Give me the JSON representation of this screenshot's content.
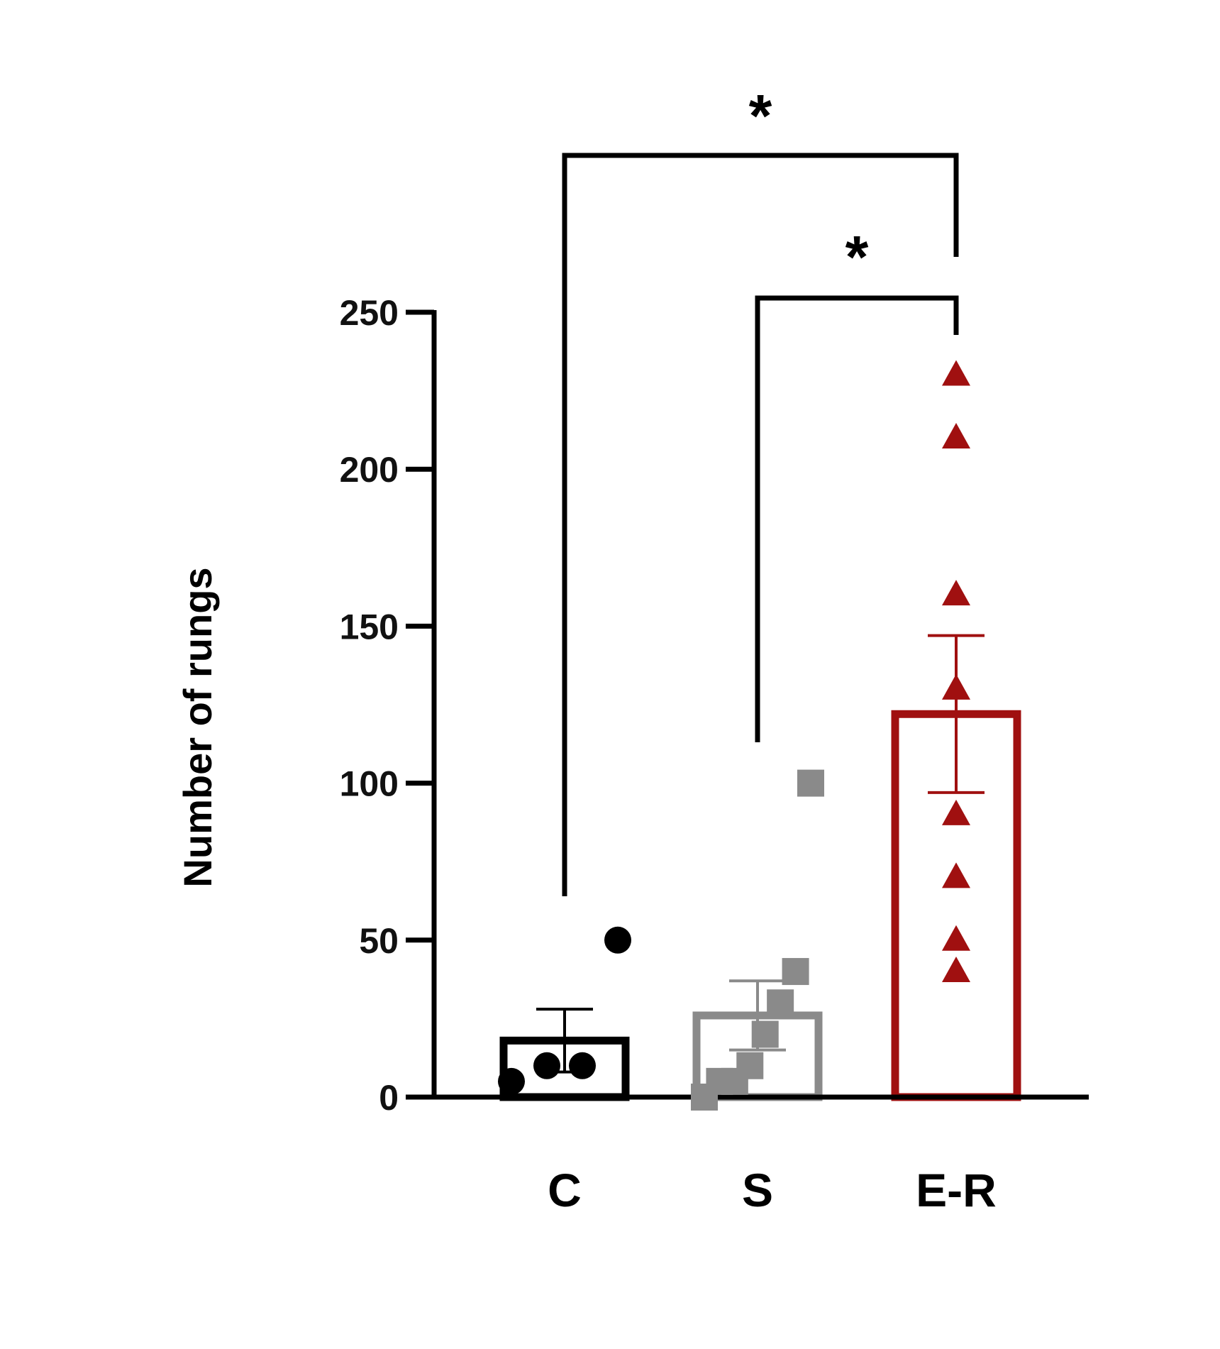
{
  "chart_data": {
    "type": "bar",
    "title": "",
    "xlabel": "",
    "ylabel": "Number of rungs",
    "ylim": [
      0,
      250
    ],
    "yticks": [
      0,
      50,
      100,
      150,
      200,
      250
    ],
    "ytick_labels": [
      "0",
      "50",
      "100",
      "150",
      "200",
      "250"
    ],
    "grid": false,
    "legend": "none",
    "categories": [
      "C",
      "S",
      "E-R"
    ],
    "means": [
      18,
      26,
      122
    ],
    "errors": [
      10,
      11,
      25
    ],
    "points": [
      [
        5,
        10,
        10,
        50
      ],
      [
        0,
        5,
        5,
        10,
        20,
        30,
        40,
        100
      ],
      [
        40,
        50,
        70,
        90,
        130,
        160,
        210,
        230
      ]
    ],
    "colors": [
      "#000000",
      "#8a8a8a",
      "#a01010"
    ],
    "markers": [
      "circle",
      "square",
      "triangle"
    ],
    "significance": [
      {
        "from": "C",
        "to": "E-R",
        "label": "*"
      },
      {
        "from": "S",
        "to": "E-R",
        "label": "*"
      }
    ]
  }
}
